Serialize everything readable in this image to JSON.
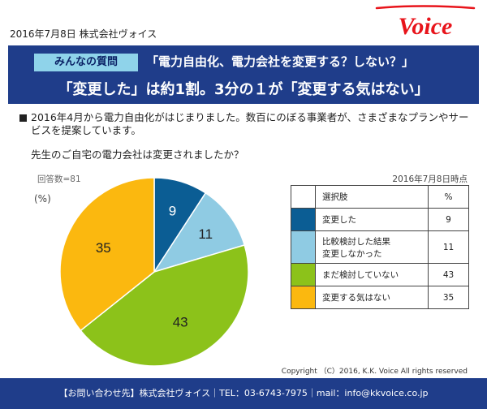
{
  "header": {
    "date_company": "2016年7月8日 株式会社ヴォイス",
    "logo_text": "Voice",
    "logo_color": "#e8141b"
  },
  "banner": {
    "tag": "みんなの質問",
    "headline1": "「電力自由化、電力会社を変更する？しない？」",
    "headline2": "「変更した」は約1割。3分の１が「変更する気はない」"
  },
  "intro": {
    "text": "2016年4月から電力自由化がはじまりました。数百にのぼる事業者が、さまざまなプランやサービスを提案しています。",
    "question": "先生のご自宅の電力会社は変更されましたか？"
  },
  "chart_meta": {
    "respondents": "回答数=81",
    "unit": "(%)",
    "as_of": "2016年7月8日時点"
  },
  "legend": {
    "header_label": "選択肢",
    "header_value": "%"
  },
  "chart_data": {
    "type": "pie",
    "categories": [
      "変更した",
      "比較検討した結果\n変更しなかった",
      "まだ検討していない",
      "変更する気はない"
    ],
    "values": [
      9,
      11,
      43,
      35
    ],
    "colors": [
      "#0b5d94",
      "#8fcbe3",
      "#8cc21a",
      "#fbb80f"
    ]
  },
  "copyright": "Copyright （C）2016, K.K. Voice All rights reserved",
  "footer": "【お問い合わせ先】株式会社ヴォイス｜TEL：03-6743-7975｜mail：info@kkvoice.co.jp"
}
